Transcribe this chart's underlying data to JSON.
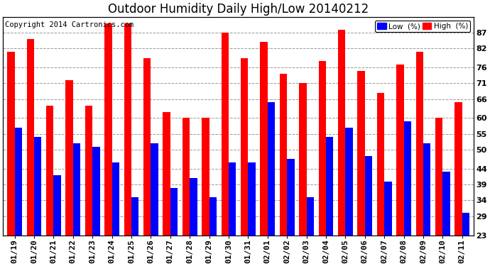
{
  "title": "Outdoor Humidity Daily High/Low 20140212",
  "copyright": "Copyright 2014 Cartronics.com",
  "categories": [
    "01/19",
    "01/20",
    "01/21",
    "01/22",
    "01/23",
    "01/24",
    "01/25",
    "01/26",
    "01/27",
    "01/28",
    "01/29",
    "01/30",
    "01/31",
    "02/01",
    "02/02",
    "02/03",
    "02/04",
    "02/05",
    "02/06",
    "02/07",
    "02/08",
    "02/09",
    "02/10",
    "02/11"
  ],
  "high_values": [
    81,
    85,
    64,
    72,
    64,
    90,
    90,
    79,
    62,
    60,
    60,
    87,
    79,
    84,
    74,
    71,
    78,
    88,
    75,
    68,
    77,
    81,
    60,
    65
  ],
  "low_values": [
    57,
    54,
    42,
    52,
    51,
    46,
    35,
    52,
    38,
    41,
    35,
    46,
    46,
    65,
    47,
    35,
    54,
    57,
    48,
    40,
    59,
    52,
    43,
    30
  ],
  "high_color": "#ff0000",
  "low_color": "#0000ff",
  "background_color": "#ffffff",
  "grid_color": "#999999",
  "yticks": [
    23,
    29,
    34,
    39,
    44,
    50,
    55,
    60,
    66,
    71,
    76,
    82,
    87
  ],
  "ymin": 23,
  "ymax": 92,
  "legend_labels": [
    "Low  (%)",
    "High  (%)"
  ],
  "title_fontsize": 12,
  "tick_fontsize": 8,
  "copyright_fontsize": 7.5
}
